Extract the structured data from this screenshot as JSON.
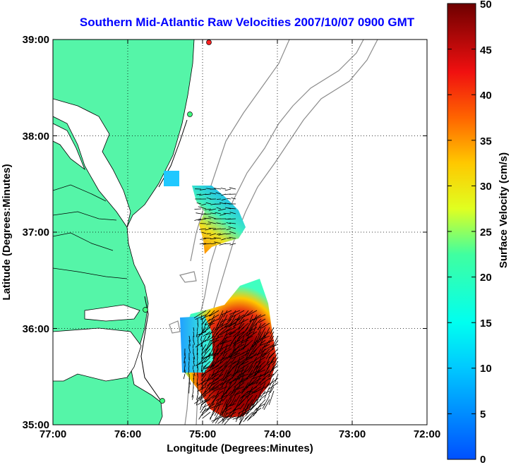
{
  "title": "Southern Mid-Atlantic Raw Velocities 2007/10/07 0900 GMT",
  "x_axis": {
    "label": "Longitude (Degrees:Minutes)",
    "ticks": [
      "77:00",
      "76:00",
      "75:00",
      "74:00",
      "73:00",
      "72:00"
    ]
  },
  "y_axis": {
    "label": "Latitude (Degrees:Minutes)",
    "ticks": [
      "39:00",
      "38:00",
      "37:00",
      "36:00",
      "35:00"
    ]
  },
  "colorbar": {
    "label": "Surface Velocity (cm/s)",
    "ticks": [
      "50",
      "45",
      "40",
      "35",
      "30",
      "25",
      "20",
      "15",
      "10",
      "5",
      "0"
    ],
    "min": 0,
    "max": 50
  },
  "colors": {
    "land": "#55f5a8",
    "title": "#0000ff",
    "bathymetry": "#8c8c8c"
  },
  "chart_data": {
    "type": "heatmap",
    "title": "Southern Mid-Atlantic Raw Velocities 2007/10/07 0900 GMT",
    "xlabel": "Longitude (Degrees:Minutes)",
    "ylabel": "Latitude (Degrees:Minutes)",
    "xlim": [
      -77,
      -72
    ],
    "ylim": [
      35,
      39
    ],
    "colorbar_range": [
      0,
      50
    ],
    "units": "cm/s",
    "grid": true,
    "regions": [
      {
        "lon_range": [
          -75.4,
          -75.3
        ],
        "lat_range": [
          37.4,
          37.55
        ],
        "speed": 12
      },
      {
        "lon_range": [
          -75.1,
          -74.5
        ],
        "lat_range": [
          36.8,
          37.5
        ],
        "speed_range": [
          8,
          35
        ]
      },
      {
        "lon_range": [
          -75.3,
          -74.1
        ],
        "lat_range": [
          35.1,
          36.5
        ],
        "speed_range": [
          10,
          50
        ]
      }
    ]
  }
}
